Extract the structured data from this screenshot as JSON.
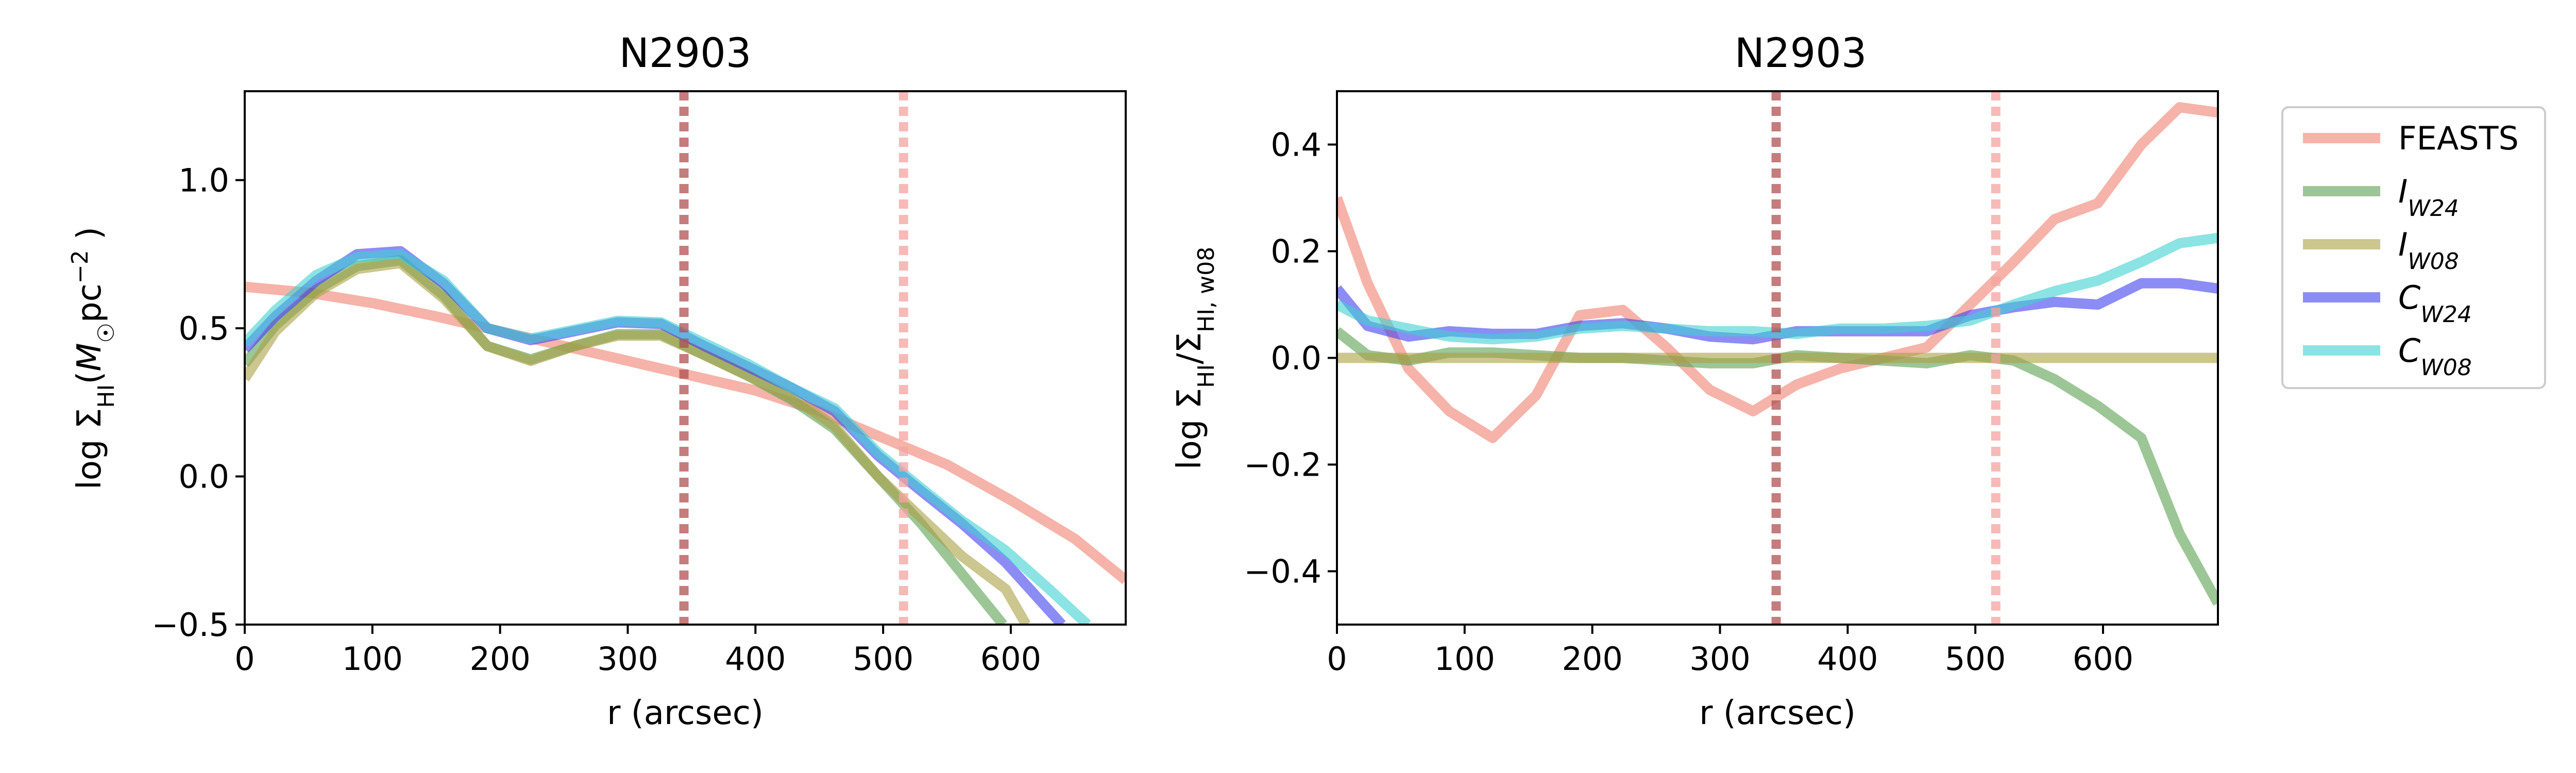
{
  "chart_data": [
    {
      "type": "line",
      "title": "N2903",
      "xlabel": "r (arcsec)",
      "ylabel": "log Σ_HI(M_☉pc^−2 )",
      "xlim": [
        0,
        690
      ],
      "ylim": [
        -0.5,
        1.3
      ],
      "xticks": [
        0,
        100,
        200,
        300,
        400,
        500,
        600
      ],
      "xtick_labels": [
        "0",
        "100",
        "200",
        "300",
        "400",
        "500",
        "600"
      ],
      "yticks": [
        -0.5,
        0.0,
        0.5,
        1.0
      ],
      "ytick_labels": [
        "−0.5",
        "0.0",
        "0.5",
        "1.0"
      ],
      "vlines": [
        {
          "x": 344,
          "color": "#b05050"
        },
        {
          "x": 516,
          "color": "#f4a3a0"
        }
      ],
      "series": [
        {
          "name": "FEASTS",
          "color": "#f08070",
          "x": [
            0,
            50,
            100,
            150,
            200,
            250,
            300,
            350,
            400,
            450,
            500,
            550,
            600,
            650,
            690
          ],
          "y": [
            0.64,
            0.62,
            0.585,
            0.54,
            0.49,
            0.44,
            0.39,
            0.34,
            0.29,
            0.22,
            0.13,
            0.04,
            -0.08,
            -0.21,
            -0.35
          ]
        },
        {
          "name": "I_W24",
          "color": "#5aa050",
          "x": [
            0,
            24,
            56,
            88,
            122,
            156,
            190,
            224,
            258,
            292,
            326,
            360,
            394,
            428,
            462,
            496,
            530,
            562,
            594
          ],
          "y": [
            0.38,
            0.51,
            0.63,
            0.71,
            0.73,
            0.61,
            0.44,
            0.395,
            0.44,
            0.48,
            0.48,
            0.41,
            0.34,
            0.26,
            0.16,
            0.0,
            -0.16,
            -0.33,
            -0.5
          ]
        },
        {
          "name": "I_W08",
          "color": "#aaa045",
          "x": [
            0,
            24,
            56,
            88,
            122,
            156,
            190,
            224,
            258,
            292,
            326,
            360,
            394,
            428,
            462,
            496,
            530,
            562,
            596,
            612
          ],
          "y": [
            0.33,
            0.49,
            0.62,
            0.7,
            0.72,
            0.6,
            0.44,
            0.39,
            0.44,
            0.475,
            0.475,
            0.41,
            0.34,
            0.27,
            0.17,
            0.0,
            -0.14,
            -0.27,
            -0.38,
            -0.5
          ]
        },
        {
          "name": "C_W24",
          "color": "#4040ee",
          "x": [
            0,
            24,
            56,
            88,
            122,
            156,
            190,
            224,
            258,
            292,
            326,
            360,
            394,
            428,
            462,
            496,
            530,
            562,
            596,
            640
          ],
          "y": [
            0.43,
            0.54,
            0.66,
            0.75,
            0.76,
            0.65,
            0.5,
            0.46,
            0.49,
            0.52,
            0.515,
            0.44,
            0.37,
            0.3,
            0.22,
            0.07,
            -0.05,
            -0.16,
            -0.29,
            -0.5
          ]
        },
        {
          "name": "C_W08",
          "color": "#40d0d0",
          "x": [
            0,
            24,
            56,
            88,
            122,
            156,
            190,
            224,
            258,
            292,
            326,
            360,
            394,
            428,
            462,
            496,
            530,
            562,
            596,
            630,
            660
          ],
          "y": [
            0.45,
            0.56,
            0.68,
            0.74,
            0.75,
            0.66,
            0.5,
            0.465,
            0.495,
            0.525,
            0.52,
            0.45,
            0.38,
            0.3,
            0.23,
            0.08,
            -0.04,
            -0.15,
            -0.25,
            -0.38,
            -0.5
          ]
        }
      ]
    },
    {
      "type": "line",
      "title": "N2903",
      "xlabel": "r (arcsec)",
      "ylabel": "log Σ_HI/Σ_HI, w08",
      "xlim": [
        0,
        690
      ],
      "ylim": [
        -0.5,
        0.5
      ],
      "xticks": [
        0,
        100,
        200,
        300,
        400,
        500,
        600
      ],
      "xtick_labels": [
        "0",
        "100",
        "200",
        "300",
        "400",
        "500",
        "600"
      ],
      "yticks": [
        -0.4,
        -0.2,
        0.0,
        0.2,
        0.4
      ],
      "ytick_labels": [
        "−0.4",
        "−0.2",
        "0.0",
        "0.2",
        "0.4"
      ],
      "vlines": [
        {
          "x": 344,
          "color": "#b05050"
        },
        {
          "x": 516,
          "color": "#f4a3a0"
        }
      ],
      "series": [
        {
          "name": "FEASTS",
          "color": "#f08070",
          "x": [
            0,
            24,
            56,
            88,
            122,
            156,
            190,
            224,
            258,
            292,
            326,
            360,
            394,
            428,
            462,
            496,
            530,
            562,
            596,
            630,
            660,
            690
          ],
          "y": [
            0.3,
            0.14,
            -0.02,
            -0.1,
            -0.15,
            -0.07,
            0.08,
            0.09,
            0.02,
            -0.06,
            -0.1,
            -0.05,
            -0.02,
            0.0,
            0.02,
            0.1,
            0.18,
            0.26,
            0.29,
            0.4,
            0.47,
            0.46
          ]
        },
        {
          "name": "I_W24",
          "color": "#5aa050",
          "x": [
            0,
            24,
            56,
            88,
            122,
            156,
            190,
            224,
            258,
            292,
            326,
            360,
            394,
            428,
            462,
            496,
            530,
            562,
            596,
            630,
            660,
            690
          ],
          "y": [
            0.05,
            0.005,
            -0.005,
            0.01,
            0.01,
            0.005,
            0.0,
            0.0,
            -0.005,
            -0.01,
            -0.01,
            0.005,
            0.0,
            -0.005,
            -0.01,
            0.005,
            -0.005,
            -0.04,
            -0.09,
            -0.15,
            -0.33,
            -0.46
          ]
        },
        {
          "name": "I_W08",
          "color": "#aaa045",
          "x": [
            0,
            690
          ],
          "y": [
            0.0,
            0.0
          ]
        },
        {
          "name": "C_W24",
          "color": "#4040ee",
          "x": [
            0,
            24,
            56,
            88,
            122,
            156,
            190,
            224,
            258,
            292,
            326,
            360,
            394,
            428,
            462,
            496,
            530,
            562,
            596,
            630,
            660,
            690
          ],
          "y": [
            0.13,
            0.06,
            0.04,
            0.05,
            0.045,
            0.045,
            0.06,
            0.065,
            0.055,
            0.04,
            0.035,
            0.05,
            0.05,
            0.05,
            0.05,
            0.08,
            0.095,
            0.105,
            0.1,
            0.14,
            0.14,
            0.13
          ]
        },
        {
          "name": "C_W08",
          "color": "#40d0d0",
          "x": [
            0,
            24,
            56,
            88,
            122,
            156,
            190,
            224,
            258,
            292,
            326,
            360,
            394,
            428,
            462,
            496,
            530,
            562,
            596,
            630,
            660,
            690
          ],
          "y": [
            0.1,
            0.07,
            0.055,
            0.04,
            0.035,
            0.04,
            0.055,
            0.06,
            0.055,
            0.05,
            0.05,
            0.045,
            0.055,
            0.055,
            0.06,
            0.07,
            0.1,
            0.125,
            0.145,
            0.18,
            0.215,
            0.225
          ]
        }
      ]
    }
  ],
  "legend": {
    "placement": "right of charts",
    "items": [
      {
        "label": "FEASTS",
        "color": "#f08070"
      },
      {
        "label": "I",
        "sub": "W24",
        "color": "#5aa050"
      },
      {
        "label": "I",
        "sub": "W08",
        "color": "#aaa045"
      },
      {
        "label": "C",
        "sub": "W24",
        "color": "#4040ee"
      },
      {
        "label": "C",
        "sub": "W08",
        "color": "#40d0d0"
      }
    ]
  }
}
